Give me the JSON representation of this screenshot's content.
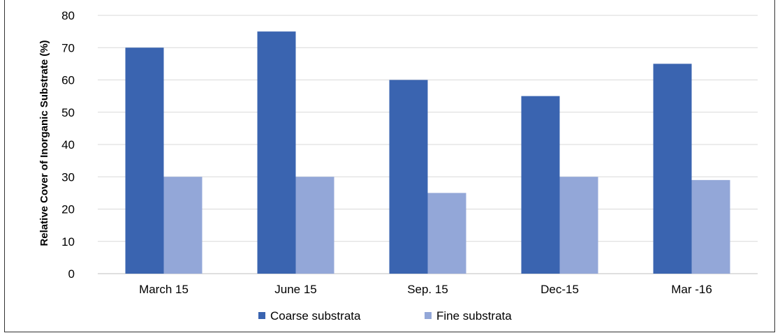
{
  "chart_data": {
    "type": "bar",
    "title": "",
    "xlabel": "",
    "ylabel": "Relative Cover of Inorganic Substrate (%)",
    "ylim": [
      0,
      80
    ],
    "yticks": [
      0,
      10,
      20,
      30,
      40,
      50,
      60,
      70,
      80
    ],
    "grid": true,
    "legend_position": "bottom",
    "categories": [
      "March 15",
      "June 15",
      "Sep. 15",
      "Dec-15",
      "Mar -16"
    ],
    "series": [
      {
        "name": "Coarse substrata",
        "color": "#3A64B0",
        "values": [
          70,
          75,
          60,
          55,
          65
        ]
      },
      {
        "name": "Fine substrata",
        "color": "#93A7D8",
        "values": [
          30,
          30,
          25,
          30,
          29
        ]
      }
    ]
  }
}
